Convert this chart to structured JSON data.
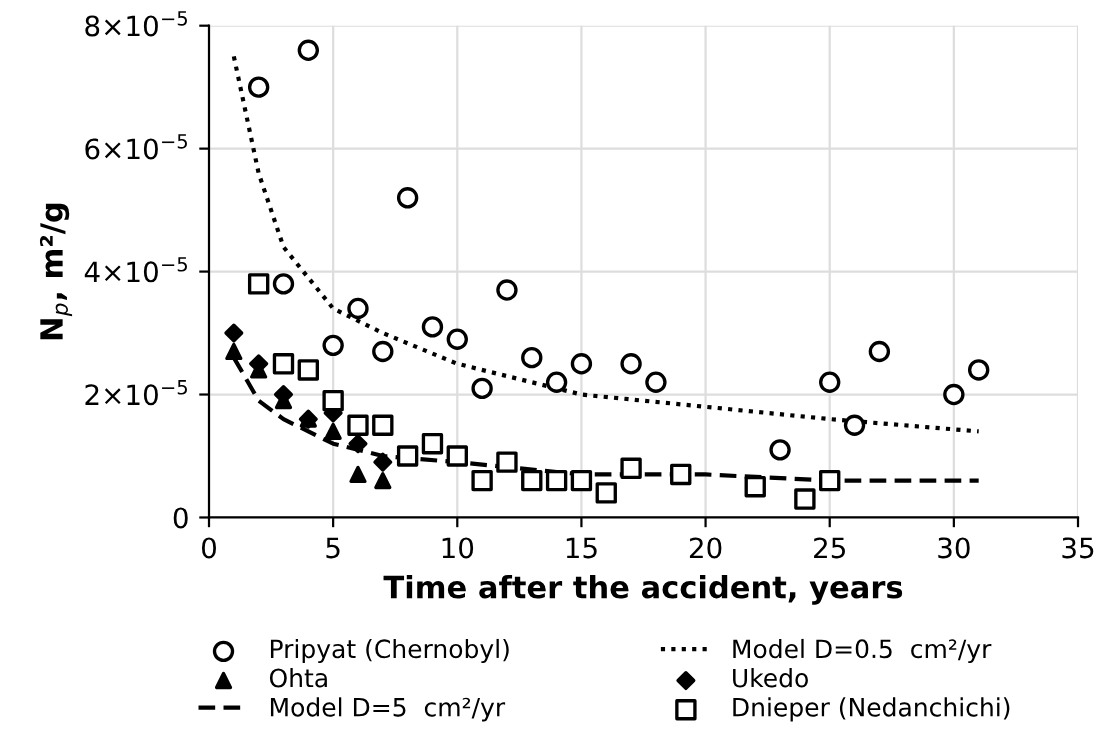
{
  "chart_data": {
    "type": "scatter",
    "xlabel": "Time after the accident, years",
    "ylabel": "N$_{p}$, m²/g",
    "xlim": [
      0,
      35
    ],
    "xticks": [
      0,
      5,
      10,
      15,
      20,
      25,
      30,
      35
    ],
    "ylim": [
      0,
      8e-05
    ],
    "yticks": [
      0,
      {
        "value": 2e-05,
        "label": "2×10$^{−5}$"
      },
      {
        "value": 4e-05,
        "label": "4×10$^{−5}$"
      },
      {
        "value": 6e-05,
        "label": "6×10$^{−5}$"
      },
      {
        "value": 8e-05,
        "label": "8×10$^{−5}$"
      }
    ],
    "grid": true,
    "legend": "bottom",
    "series": [
      {
        "name": "Pripyat (Chernobyl)",
        "color": "#000000",
        "marker": "circle",
        "x": [
          2,
          3,
          4,
          5,
          6,
          7,
          8,
          9,
          10,
          11,
          12,
          13,
          14,
          15,
          17,
          18,
          23,
          25,
          26,
          27,
          30,
          31
        ],
        "values": [
          7e-05,
          3.8e-05,
          7.6e-05,
          2.8e-05,
          3.4e-05,
          2.7e-05,
          5.2e-05,
          3.1e-05,
          2.9e-05,
          2.1e-05,
          3.7e-05,
          2.6e-05,
          2.2e-05,
          2.5e-05,
          2.5e-05,
          2.2e-05,
          1.1e-05,
          2.2e-05,
          1.5e-05,
          2.7e-05,
          2e-05,
          2.4e-05
        ]
      },
      {
        "name": "Ohta",
        "color": "#000000",
        "marker": "triangle",
        "x": [
          1,
          2,
          3,
          4,
          5,
          6,
          7
        ],
        "values": [
          2.7e-05,
          2.4e-05,
          1.9e-05,
          1.6e-05,
          1.4e-05,
          7e-06,
          6e-06
        ]
      },
      {
        "name": "Model D=5  cm²/yr",
        "type": "line",
        "color": "#000000",
        "marker": "none",
        "line_style": "dashed",
        "x": [
          1,
          2,
          3,
          5,
          7,
          10,
          15,
          20,
          25,
          31
        ],
        "values": [
          2.6e-05,
          1.9e-05,
          1.6e-05,
          1.2e-05,
          1e-05,
          9e-06,
          7e-06,
          7e-06,
          6e-06,
          6e-06
        ]
      },
      {
        "name": "Model D=0.5  cm²/yr",
        "type": "line",
        "color": "#000000",
        "marker": "none",
        "line_style": "dotted",
        "x": [
          1,
          2,
          3,
          5,
          7,
          10,
          15,
          20,
          25,
          31
        ],
        "values": [
          7.5e-05,
          5.6e-05,
          4.4e-05,
          3.4e-05,
          3e-05,
          2.5e-05,
          2e-05,
          1.8e-05,
          1.6e-05,
          1.4e-05
        ]
      },
      {
        "name": "Ukedo",
        "color": "#000000",
        "marker": "diamond",
        "x": [
          1,
          2,
          3,
          4,
          5,
          6,
          7
        ],
        "values": [
          3e-05,
          2.5e-05,
          2e-05,
          1.6e-05,
          1.7e-05,
          1.2e-05,
          9e-06
        ]
      },
      {
        "name": "Dnieper (Nedanchichi)",
        "color": "#000000",
        "marker": "square",
        "x": [
          2,
          3,
          4,
          5,
          6,
          7,
          8,
          9,
          10,
          11,
          12,
          13,
          14,
          15,
          16,
          17,
          19,
          22,
          24,
          25
        ],
        "values": [
          3.8e-05,
          2.5e-05,
          2.4e-05,
          1.9e-05,
          1.5e-05,
          1.5e-05,
          1e-05,
          1.2e-05,
          1e-05,
          6e-06,
          9e-06,
          6e-06,
          6e-06,
          6e-06,
          4e-06,
          8e-06,
          7e-06,
          5e-06,
          3e-06,
          6e-06
        ]
      }
    ]
  }
}
